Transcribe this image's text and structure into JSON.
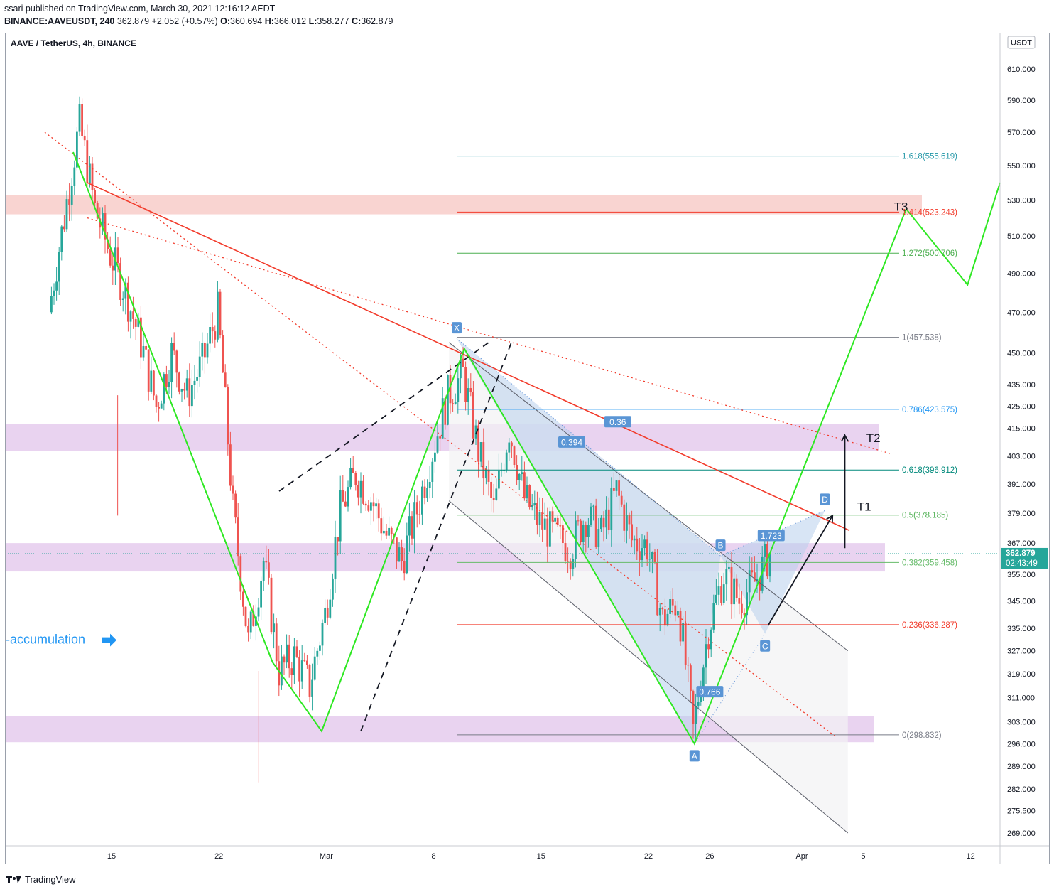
{
  "header": {
    "published_line": "ssari published on TradingView.com, March 30, 2021 12:16:12 AEDT",
    "symbol_line": {
      "symbol": "BINANCE:AAVEUSDT, 240",
      "last": "362.879",
      "change": "+2.052 (+0.57%)",
      "open": "360.694",
      "high": "366.012",
      "low": "358.277",
      "close": "362.879",
      "o_label": "O:",
      "h_label": "H:",
      "l_label": "L:",
      "c_label": "C:"
    }
  },
  "chart_title": "AAVE / TetherUS, 4h, BINANCE",
  "currency_button": "USDT",
  "price_badge": {
    "price": "362.879",
    "countdown": "02:43:49"
  },
  "footer": {
    "brand": "TradingView"
  },
  "colors": {
    "candle_up": "#26a69a",
    "candle_down": "#ef5350",
    "pattern_green": "#2ee822",
    "trend_red": "#f23b2b",
    "fib_blue": "#2196f3",
    "harmonic_fill": "#b8d0ec",
    "zone_pink": "#f8c9c5",
    "zone_purple": "#e3c8ec"
  },
  "chart_data": {
    "type": "candlestick",
    "title": "AAVE / TetherUS, 4h, BINANCE",
    "x_axis": {
      "ticks": [
        {
          "label": "15",
          "date": "2021-02-15"
        },
        {
          "label": "22",
          "date": "2021-02-22"
        },
        {
          "label": "Mar",
          "date": "2021-03-01"
        },
        {
          "label": "8",
          "date": "2021-03-08"
        },
        {
          "label": "15",
          "date": "2021-03-15"
        },
        {
          "label": "22",
          "date": "2021-03-22"
        },
        {
          "label": "26",
          "date": "2021-03-26"
        },
        {
          "label": "Apr",
          "date": "2021-04-01"
        },
        {
          "label": "5",
          "date": "2021-04-05"
        },
        {
          "label": "12",
          "date": "2021-04-12"
        }
      ]
    },
    "y_axis": {
      "scale": "log",
      "range": [
        265,
        635
      ],
      "ticks": [
        610,
        590,
        570,
        550,
        530,
        510,
        490,
        470,
        450,
        435,
        425,
        415,
        403,
        391,
        379,
        367,
        355,
        345,
        335,
        327,
        319,
        311,
        303,
        296,
        289,
        282,
        275.5,
        269
      ],
      "tick_labels": [
        "610.000",
        "590.000",
        "570.000",
        "550.000",
        "530.000",
        "510.000",
        "490.000",
        "470.000",
        "450.000",
        "435.000",
        "425.000",
        "415.000",
        "403.000",
        "391.000",
        "379.000",
        "367.000",
        "355.000",
        "345.000",
        "335.000",
        "327.000",
        "319.000",
        "311.000",
        "303.000",
        "296.000",
        "289.000",
        "282.000",
        "275.500",
        "269.000"
      ]
    },
    "price_path": [
      {
        "date": "2021-02-11",
        "price": 470
      },
      {
        "date": "2021-02-12",
        "price": 520
      },
      {
        "date": "2021-02-13",
        "price": 575
      },
      {
        "date": "2021-02-14",
        "price": 525
      },
      {
        "date": "2021-02-15",
        "price": 500
      },
      {
        "date": "2021-02-16",
        "price": 480
      },
      {
        "date": "2021-02-17",
        "price": 455
      },
      {
        "date": "2021-02-18",
        "price": 425
      },
      {
        "date": "2021-02-19",
        "price": 450
      },
      {
        "date": "2021-02-20",
        "price": 430
      },
      {
        "date": "2021-02-21",
        "price": 445
      },
      {
        "date": "2021-02-22",
        "price": 470
      },
      {
        "date": "2021-02-23",
        "price": 380
      },
      {
        "date": "2021-02-24",
        "price": 330
      },
      {
        "date": "2021-02-25",
        "price": 360
      },
      {
        "date": "2021-02-26",
        "price": 320
      },
      {
        "date": "2021-02-27",
        "price": 325
      },
      {
        "date": "2021-02-28",
        "price": 315
      },
      {
        "date": "2021-03-01",
        "price": 340
      },
      {
        "date": "2021-03-02",
        "price": 380
      },
      {
        "date": "2021-03-03",
        "price": 395
      },
      {
        "date": "2021-03-04",
        "price": 385
      },
      {
        "date": "2021-03-05",
        "price": 370
      },
      {
        "date": "2021-03-06",
        "price": 360
      },
      {
        "date": "2021-03-07",
        "price": 380
      },
      {
        "date": "2021-03-08",
        "price": 405
      },
      {
        "date": "2021-03-09",
        "price": 430
      },
      {
        "date": "2021-03-10",
        "price": 440
      },
      {
        "date": "2021-03-11",
        "price": 405
      },
      {
        "date": "2021-03-12",
        "price": 380
      },
      {
        "date": "2021-03-13",
        "price": 415
      },
      {
        "date": "2021-03-14",
        "price": 385
      },
      {
        "date": "2021-03-15",
        "price": 375
      },
      {
        "date": "2021-03-16",
        "price": 370
      },
      {
        "date": "2021-03-17",
        "price": 365
      },
      {
        "date": "2021-03-18",
        "price": 378
      },
      {
        "date": "2021-03-19",
        "price": 370
      },
      {
        "date": "2021-03-20",
        "price": 388
      },
      {
        "date": "2021-03-21",
        "price": 368
      },
      {
        "date": "2021-03-22",
        "price": 366
      },
      {
        "date": "2021-03-23",
        "price": 338
      },
      {
        "date": "2021-03-24",
        "price": 345
      },
      {
        "date": "2021-03-25",
        "price": 300
      },
      {
        "date": "2021-03-26",
        "price": 335
      },
      {
        "date": "2021-03-27",
        "price": 355
      },
      {
        "date": "2021-03-28",
        "price": 345
      },
      {
        "date": "2021-03-29",
        "price": 352
      },
      {
        "date": "2021-03-30",
        "price": 362.879
      }
    ],
    "fib_levels": [
      {
        "label": "1.618(555.619)",
        "price": 555.619,
        "color": "#2196a6"
      },
      {
        "label": "1.414(523.243)",
        "price": 523.243,
        "color": "#f23b2b"
      },
      {
        "label": "1.272(500.706)",
        "price": 500.706,
        "color": "#4caf50"
      },
      {
        "label": "1(457.538)",
        "price": 457.538,
        "color": "#787b86"
      },
      {
        "label": "0.786(423.575)",
        "price": 423.575,
        "color": "#2196f3"
      },
      {
        "label": "0.618(396.912)",
        "price": 396.912,
        "color": "#00897b"
      },
      {
        "label": "0.5(378.185)",
        "price": 378.185,
        "color": "#4caf50"
      },
      {
        "label": "0.382(359.458)",
        "price": 359.458,
        "color": "#66bb6a"
      },
      {
        "label": "0.236(336.287)",
        "price": 336.287,
        "color": "#f23b2b"
      },
      {
        "label": "0(298.832)",
        "price": 298.832,
        "color": "#787b86"
      }
    ],
    "harmonic_points": [
      {
        "label": "X",
        "date": "2021-03-09.5",
        "price": 457
      },
      {
        "label": "A",
        "date": "2021-03-25",
        "price": 296
      },
      {
        "label": "B",
        "date": "2021-03-26.7",
        "price": 362
      },
      {
        "label": "C",
        "date": "2021-03-29.6",
        "price": 333
      },
      {
        "label": "D",
        "date": "2021-04-02.5",
        "price": 380
      }
    ],
    "harmonic_ratios": [
      "0.394",
      "0.36",
      "0.766",
      "1.723"
    ],
    "targets": [
      "T1",
      "T2",
      "T3"
    ],
    "annotations": [
      "-accumulation"
    ]
  }
}
